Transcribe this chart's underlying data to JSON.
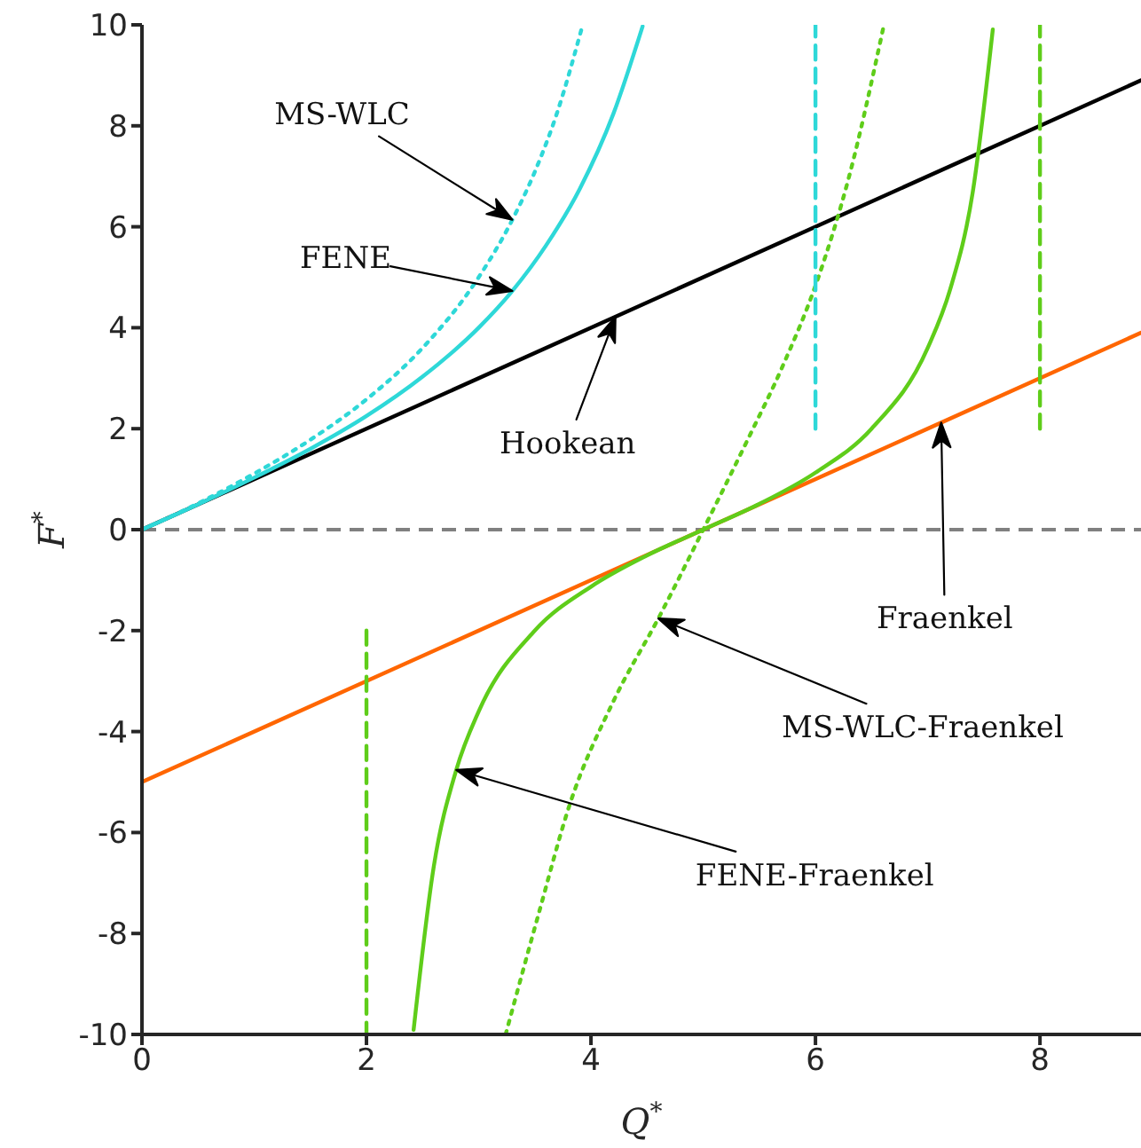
{
  "chart_data": {
    "type": "line",
    "xlabel": "Q$^{*}$",
    "ylabel": "F$^{*}$",
    "xlim": [
      0,
      8.9
    ],
    "xticks": [
      0,
      2,
      4,
      6,
      8
    ],
    "ylim": [
      -10,
      10
    ],
    "yticks": [
      -10,
      -8,
      -6,
      -4,
      -2,
      0,
      2,
      4,
      6,
      8,
      10
    ],
    "grid": false,
    "marker": "none",
    "series": [
      {
        "color": "#000000",
        "line_style": "solid",
        "x": [
          0,
          8.9
        ],
        "values": [
          0,
          8.9
        ]
      },
      {
        "color": "#ff6600",
        "line_style": "solid",
        "x": [
          0,
          8.9
        ],
        "values": [
          -5,
          3.9
        ]
      },
      {
        "color": "#2ed8d8",
        "line_style": "solid",
        "x": [
          0,
          0.5,
          1,
          1.5,
          2,
          2.5,
          3,
          3.3,
          3.6,
          3.9,
          4.2,
          4.46
        ],
        "values": [
          0,
          0.5,
          1.03,
          1.6,
          2.25,
          3.03,
          4.0,
          4.73,
          5.63,
          6.75,
          8.24,
          9.97
        ]
      },
      {
        "color": "#2ed8d8",
        "line_style": "dotted",
        "x": [
          0,
          0.5,
          1,
          1.5,
          2,
          2.5,
          3,
          3.3,
          3.5,
          3.7,
          3.92
        ],
        "values": [
          0,
          0.52,
          1.11,
          1.78,
          2.58,
          3.6,
          5.0,
          6.14,
          7.09,
          8.27,
          9.95
        ]
      },
      {
        "color": "#5fcd1a",
        "line_style": "solid",
        "x": [
          2.42,
          2.6,
          2.8,
          3.0,
          3.5,
          4.0,
          4.5,
          5.0,
          5.5,
          6.0,
          6.5,
          7.0,
          7.2,
          7.4,
          7.58
        ],
        "values": [
          -9.91,
          -6.67,
          -4.76,
          -3.6,
          -2.0,
          -1.13,
          -0.51,
          0,
          0.51,
          1.13,
          2.0,
          3.6,
          4.76,
          6.67,
          9.91
        ]
      },
      {
        "color": "#5fcd1a",
        "line_style": "dotted",
        "x": [
          3.24,
          3.54,
          3.81,
          4.2,
          4.6,
          5.0,
          5.4,
          5.7,
          6.02,
          6.3,
          6.61
        ],
        "values": [
          -10,
          -7.56,
          -5.45,
          -3.4,
          -1.76,
          0,
          1.8,
          3.2,
          4.96,
          7.0,
          10
        ]
      },
      {
        "color": "#2ed8d8",
        "line_style": "dashed",
        "x": [
          6,
          6
        ],
        "values": [
          2,
          10
        ]
      },
      {
        "color": "#5fcd1a",
        "line_style": "dashed",
        "x": [
          8,
          8
        ],
        "values": [
          2,
          10
        ]
      },
      {
        "color": "#5fcd1a",
        "line_style": "dashed",
        "x": [
          2,
          2
        ],
        "values": [
          -2,
          -10
        ]
      }
    ],
    "ref_lines": [
      {
        "axis": "y",
        "value": 0,
        "color": "#808080",
        "line_style": "dashed"
      }
    ],
    "annotations": [
      "MS-WLC",
      "FENE",
      "Hookean",
      "Fraenkel",
      "MS-WLC-Fraenkel",
      "FENE-Fraenkel"
    ]
  }
}
